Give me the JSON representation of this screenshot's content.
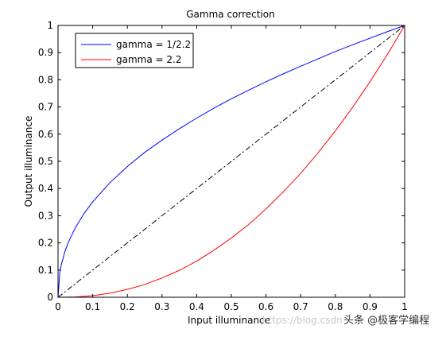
{
  "chart_data": {
    "type": "line",
    "title": "Gamma correction",
    "xlabel": "Input illuminance",
    "ylabel": "Output illuminance",
    "xlim": [
      0,
      1
    ],
    "ylim": [
      0,
      1
    ],
    "xticks": [
      "0",
      "0.1",
      "0.2",
      "0.3",
      "0.4",
      "0.5",
      "0.6",
      "0.7",
      "0.8",
      "0.9",
      "1"
    ],
    "yticks": [
      "0",
      "0.1",
      "0.2",
      "0.3",
      "0.4",
      "0.5",
      "0.6",
      "0.7",
      "0.8",
      "0.9",
      "1"
    ],
    "grid": false,
    "legend_position": "top-left",
    "series": [
      {
        "name": "gamma = 1/2.2",
        "color": "#0000ff",
        "style": "solid",
        "x": [
          0,
          0.005,
          0.01,
          0.02,
          0.03,
          0.05,
          0.075,
          0.1,
          0.15,
          0.2,
          0.25,
          0.3,
          0.35,
          0.4,
          0.45,
          0.5,
          0.55,
          0.6,
          0.65,
          0.7,
          0.75,
          0.8,
          0.85,
          0.9,
          0.95,
          1
        ],
        "y": [
          0,
          0.09,
          0.123,
          0.169,
          0.203,
          0.256,
          0.308,
          0.351,
          0.422,
          0.481,
          0.533,
          0.578,
          0.62,
          0.659,
          0.696,
          0.73,
          0.762,
          0.793,
          0.822,
          0.85,
          0.877,
          0.904,
          0.929,
          0.953,
          0.977,
          1
        ]
      },
      {
        "name": "gamma = 2.2",
        "color": "#ff0000",
        "style": "solid",
        "x": [
          0,
          0.05,
          0.1,
          0.15,
          0.2,
          0.25,
          0.3,
          0.35,
          0.4,
          0.45,
          0.5,
          0.55,
          0.6,
          0.65,
          0.7,
          0.75,
          0.8,
          0.85,
          0.9,
          0.95,
          1
        ],
        "y": [
          0,
          0.001,
          0.006,
          0.015,
          0.029,
          0.047,
          0.071,
          0.099,
          0.133,
          0.173,
          0.218,
          0.268,
          0.325,
          0.388,
          0.456,
          0.531,
          0.612,
          0.699,
          0.793,
          0.893,
          1
        ]
      },
      {
        "name": "",
        "color": "#000000",
        "style": "dash-dot",
        "x": [
          0,
          1
        ],
        "y": [
          0,
          1
        ]
      }
    ]
  },
  "watermark": {
    "text": "头条 @极客学编程",
    "faint_text": "https://blog.csdn"
  }
}
